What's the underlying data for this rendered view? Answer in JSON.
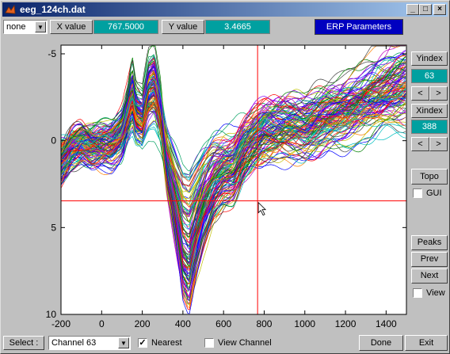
{
  "window": {
    "title": "eeg_124ch.dat"
  },
  "toolbar": {
    "mode_select": "none",
    "x_label": "X value",
    "x_value": "767.5000",
    "y_label": "Y value",
    "y_value": "3.4665",
    "erp_button": "ERP Parameters"
  },
  "side_panel": {
    "yindex_label": "Yindex",
    "yindex_value": "63",
    "xindex_label": "Xindex",
    "xindex_value": "388",
    "prev_arrow": "<",
    "next_arrow": ">",
    "topo_button": "Topo",
    "gui_label": "GUI",
    "peaks_button": "Peaks",
    "prev_button": "Prev",
    "next_button": "Next",
    "view_label": "View"
  },
  "bottom": {
    "select_label": "Select :",
    "channel_value": "Channel  63",
    "nearest_label": "Nearest",
    "nearest_checked": "✓",
    "view_channel_label": "View Channel",
    "done_button": "Done",
    "exit_button": "Exit"
  },
  "colors": {
    "crosshair": "#ff0000",
    "accent_blue": "#0000c0",
    "value_box": "#00a0a0"
  },
  "chart_data": {
    "type": "line",
    "title": "",
    "xlabel": "",
    "ylabel": "",
    "xlim": [
      -200,
      1500
    ],
    "ylim": [
      -5.5,
      10
    ],
    "y_reversed": true,
    "x_ticks": [
      "-200",
      "0",
      "200",
      "400",
      "600",
      "800",
      "1000",
      "1200",
      "1400"
    ],
    "y_ticks": [
      "-5",
      "0",
      "5",
      "10"
    ],
    "crosshair": {
      "x": 767.5,
      "y": 3.4665
    },
    "channel_count": 124,
    "mean_waveform": {
      "x": [
        -200,
        -150,
        -100,
        -50,
        0,
        50,
        100,
        130,
        150,
        170,
        200,
        230,
        260,
        290,
        320,
        360,
        400,
        430,
        460,
        500,
        550,
        600,
        650,
        700,
        750,
        800,
        900,
        1000,
        1100,
        1200,
        1300,
        1400,
        1500
      ],
      "y": [
        1.3,
        0.5,
        0.2,
        0.4,
        0.3,
        0.2,
        -0.4,
        -1.6,
        -2.6,
        -1.4,
        -1.2,
        -2.8,
        -3.1,
        -1.5,
        1.2,
        3.4,
        5.8,
        6.3,
        5.0,
        3.6,
        2.4,
        1.8,
        1.6,
        0.6,
        0.0,
        -0.4,
        -0.7,
        -0.7,
        -1.2,
        -1.6,
        -2.2,
        -2.7,
        -3.2
      ]
    }
  }
}
